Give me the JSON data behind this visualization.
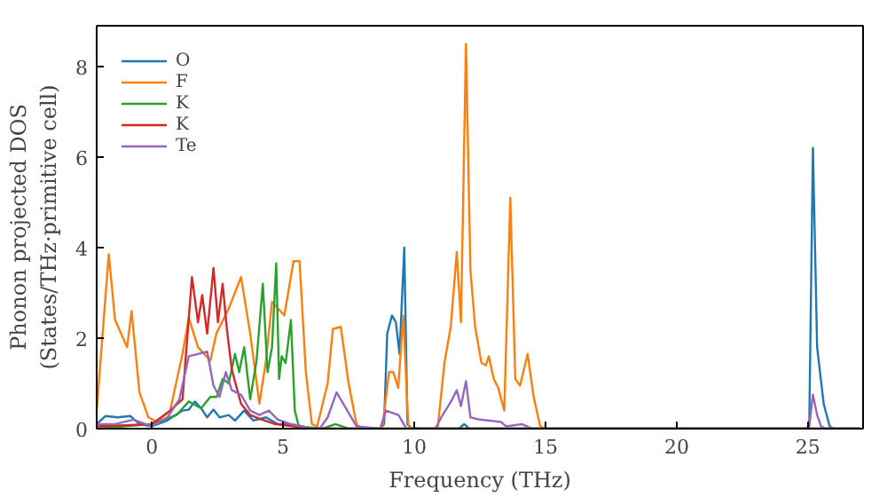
{
  "chart_data": {
    "type": "line",
    "xlabel": "Frequency (THz)",
    "ylabel": "Phonon projected DOS\n(States/THz·primitive cell)",
    "xlim": [
      -2.1,
      27.1
    ],
    "ylim": [
      0,
      8.9
    ],
    "xticks": [
      0,
      5,
      10,
      15,
      20,
      25
    ],
    "yticks": [
      0,
      2,
      4,
      6,
      8
    ],
    "grid": false,
    "legend": "top left",
    "series": [
      {
        "name": "O",
        "color": "#1f77b4",
        "x": [
          -2.1,
          -1.76,
          -1.3,
          -0.82,
          -0.47,
          0.0,
          0.59,
          1.17,
          1.41,
          1.64,
          1.88,
          2.11,
          2.35,
          2.58,
          2.93,
          3.17,
          3.52,
          3.87,
          4.35,
          4.8,
          5.28,
          5.75,
          6.0,
          8.7,
          8.85,
          8.97,
          9.15,
          9.3,
          9.44,
          9.62,
          9.74,
          9.9,
          11.7,
          11.9,
          12.1,
          24.9,
          25.05,
          25.19,
          25.35,
          25.6,
          25.83,
          26.0,
          27.0
        ],
        "values": [
          0.1,
          0.28,
          0.25,
          0.28,
          0.1,
          0.05,
          0.18,
          0.4,
          0.42,
          0.6,
          0.45,
          0.25,
          0.42,
          0.25,
          0.3,
          0.18,
          0.4,
          0.18,
          0.25,
          0.1,
          0.1,
          0.05,
          0,
          0,
          0.1,
          2.1,
          2.5,
          2.35,
          1.65,
          4.0,
          0.1,
          0,
          0,
          0.1,
          0,
          0,
          0.05,
          6.2,
          1.8,
          0.55,
          0.05,
          0,
          0
        ]
      },
      {
        "name": "F",
        "color": "#ff7f0e",
        "x": [
          -2.1,
          -1.64,
          -1.4,
          -0.94,
          -0.77,
          -0.47,
          -0.13,
          0.2,
          0.7,
          1.17,
          1.41,
          1.76,
          2.23,
          2.46,
          2.93,
          3.4,
          3.75,
          4.1,
          4.35,
          4.58,
          5.05,
          5.4,
          5.63,
          5.87,
          6.1,
          6.3,
          6.7,
          6.9,
          7.2,
          7.5,
          7.8,
          8.0,
          8.7,
          8.8,
          9.04,
          9.2,
          9.39,
          9.58,
          9.77,
          9.9,
          10.8,
          10.9,
          11.15,
          11.39,
          11.62,
          11.78,
          11.97,
          12.14,
          12.32,
          12.56,
          12.73,
          12.84,
          13.03,
          13.2,
          13.43,
          13.66,
          13.85,
          14.03,
          14.32,
          14.55,
          14.8,
          15.0,
          27.0
        ],
        "values": [
          0.4,
          3.85,
          2.4,
          1.8,
          2.6,
          0.8,
          0.25,
          0.15,
          0.4,
          1.65,
          2.45,
          1.8,
          1.5,
          2.1,
          2.65,
          3.35,
          2.1,
          0.55,
          1.5,
          2.8,
          2.5,
          3.7,
          3.7,
          1.25,
          0.1,
          0.05,
          1.0,
          2.2,
          2.25,
          1.0,
          0.1,
          0,
          0,
          0.1,
          1.25,
          1.25,
          0.9,
          2.5,
          0.1,
          0,
          0,
          0.05,
          1.45,
          2.25,
          3.9,
          2.35,
          8.5,
          3.5,
          2.25,
          1.45,
          1.4,
          1.6,
          1.1,
          0.9,
          0.4,
          5.1,
          1.1,
          0.95,
          1.65,
          0.7,
          0.05,
          0,
          0
        ]
      },
      {
        "name": "K",
        "color": "#2ca02c",
        "x": [
          -2.1,
          0.0,
          0.94,
          1.41,
          1.88,
          2.23,
          2.47,
          2.7,
          2.93,
          3.17,
          3.33,
          3.52,
          3.75,
          3.99,
          4.23,
          4.41,
          4.58,
          4.74,
          4.85,
          4.95,
          5.1,
          5.3,
          5.45,
          5.6,
          6.5,
          7.0,
          7.5,
          27.0
        ],
        "values": [
          0,
          0.1,
          0.3,
          0.6,
          0.45,
          0.7,
          0.7,
          1.1,
          1.0,
          1.65,
          1.25,
          1.8,
          0.65,
          1.5,
          3.2,
          1.25,
          1.8,
          3.65,
          1.1,
          1.6,
          1.45,
          2.4,
          0.4,
          0.05,
          0,
          0.1,
          0,
          0
        ]
      },
      {
        "name": "K",
        "color": "#d62728",
        "x": [
          -2.1,
          0.0,
          0.7,
          1.17,
          1.53,
          1.76,
          1.92,
          2.11,
          2.35,
          2.52,
          2.7,
          2.86,
          3.05,
          3.4,
          3.75,
          4.2,
          4.7,
          5.4,
          6.0,
          27.0
        ],
        "values": [
          0.05,
          0.1,
          0.4,
          0.65,
          3.35,
          2.35,
          2.95,
          2.1,
          3.55,
          2.35,
          3.2,
          2.2,
          1.3,
          0.55,
          0.3,
          0.2,
          0.1,
          0.05,
          0,
          0
        ]
      },
      {
        "name": "Te",
        "color": "#9467bd",
        "x": [
          -2.1,
          -1.4,
          -0.7,
          0.0,
          0.6,
          1.05,
          1.41,
          1.76,
          2.11,
          2.35,
          2.58,
          2.82,
          3.05,
          3.4,
          3.75,
          4.1,
          4.46,
          4.8,
          5.3,
          5.75,
          6.0,
          6.4,
          6.7,
          7.04,
          7.4,
          7.8,
          8.7,
          8.92,
          9.4,
          9.7,
          10.8,
          11.03,
          11.4,
          11.62,
          11.78,
          11.97,
          12.14,
          12.5,
          13.3,
          13.5,
          14.1,
          14.5,
          24.9,
          25.05,
          25.19,
          25.35,
          25.5,
          25.7,
          27.0
        ],
        "values": [
          0.1,
          0.1,
          0.2,
          0.05,
          0.25,
          0.65,
          1.6,
          1.65,
          1.7,
          0.95,
          0.7,
          1.25,
          0.85,
          0.75,
          0.4,
          0.3,
          0.4,
          0.2,
          0.1,
          0.05,
          0,
          0,
          0.25,
          0.8,
          0.45,
          0.05,
          0,
          0.4,
          0.3,
          0,
          0,
          0.25,
          0.6,
          0.85,
          0.5,
          1.05,
          0.25,
          0.2,
          0.15,
          0.05,
          0.1,
          0,
          0,
          0.05,
          0.75,
          0.3,
          0.05,
          0,
          0
        ]
      }
    ]
  }
}
